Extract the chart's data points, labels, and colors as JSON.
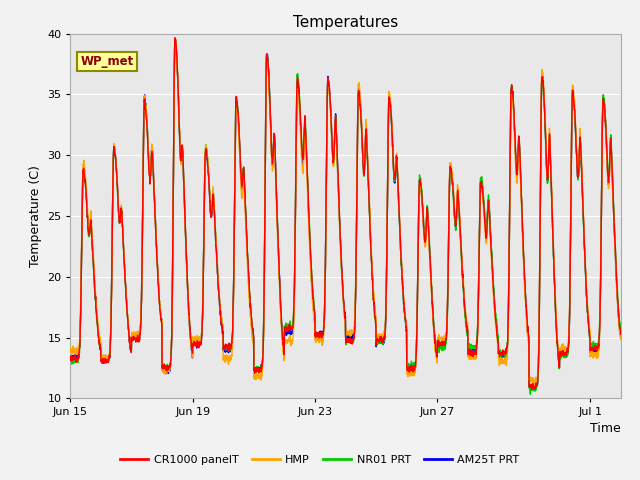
{
  "title": "Temperatures",
  "ylabel": "Temperature (C)",
  "xlabel": "Time",
  "annotation_text": "WP_met",
  "annotation_color": "#8B0000",
  "annotation_bg": "#FFFF99",
  "annotation_border": "#8B8B00",
  "ylim": [
    10,
    40
  ],
  "series_colors": {
    "CR1000 panelT": "#FF0000",
    "HMP": "#FFA500",
    "NR01 PRT": "#00CC00",
    "AM25T PRT": "#0000EE"
  },
  "bg_color": "#E8E8E8",
  "plot_bg_color": "#DCDCDC",
  "grid_color": "#FFFFFF",
  "xtick_labels": [
    "Jun 15",
    "Jun 19",
    "Jun 23",
    "Jun 27",
    "Jul 1"
  ],
  "xtick_positions": [
    0,
    4,
    8,
    12,
    17
  ],
  "num_days": 18,
  "title_fontsize": 11,
  "label_fontsize": 9,
  "tick_fontsize": 8,
  "legend_fontsize": 8,
  "lw": 1.0,
  "daily_peaks": [
    {
      "day": 0,
      "max1": 29.0,
      "min1": 13.5,
      "max2": 28.5,
      "min2": 17.5
    },
    {
      "day": 1,
      "max1": 30.5,
      "min1": 13.0,
      "max2": 29.0,
      "min2": 17.0
    },
    {
      "day": 2,
      "max1": 34.5,
      "min1": 15.0,
      "max2": 34.0,
      "min2": 17.0
    },
    {
      "day": 3,
      "max1": 39.5,
      "min1": 12.5,
      "max2": 34.5,
      "min2": 18.5
    },
    {
      "day": 4,
      "max1": 30.5,
      "min1": 14.5,
      "max2": 29.5,
      "min2": 16.5
    },
    {
      "day": 5,
      "max1": 34.5,
      "min1": 14.0,
      "max2": 30.0,
      "min2": 16.0
    },
    {
      "day": 6,
      "max1": 38.5,
      "min1": 12.5,
      "max2": 35.5,
      "min2": 16.0
    },
    {
      "day": 7,
      "max1": 36.0,
      "min1": 15.5,
      "max2": 35.5,
      "min2": 16.0
    },
    {
      "day": 8,
      "max1": 36.5,
      "min1": 15.5,
      "max2": 36.0,
      "min2": 15.5
    },
    {
      "day": 9,
      "max1": 35.5,
      "min1": 15.0,
      "max2": 35.0,
      "min2": 15.5
    },
    {
      "day": 10,
      "max1": 34.5,
      "min1": 14.5,
      "max2": 31.0,
      "min2": 15.5
    },
    {
      "day": 11,
      "max1": 28.0,
      "min1": 12.5,
      "max2": 27.5,
      "min2": 12.5
    },
    {
      "day": 12,
      "max1": 29.0,
      "min1": 14.5,
      "max2": 28.0,
      "min2": 13.5
    },
    {
      "day": 13,
      "max1": 28.0,
      "min1": 14.0,
      "max2": 27.5,
      "min2": 13.0
    },
    {
      "day": 14,
      "max1": 35.5,
      "min1": 13.5,
      "max2": 36.0,
      "min2": 16.5
    },
    {
      "day": 15,
      "max1": 36.5,
      "min1": 11.0,
      "max2": 36.0,
      "min2": 13.5
    },
    {
      "day": 16,
      "max1": 35.0,
      "min1": 13.5,
      "max2": 34.5,
      "min2": 14.5
    },
    {
      "day": 17,
      "max1": 34.5,
      "min1": 14.0,
      "max2": 34.0,
      "min2": 14.5
    }
  ]
}
